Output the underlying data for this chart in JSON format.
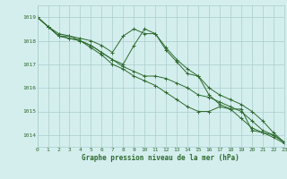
{
  "title": "Graphe pression niveau de la mer (hPa)",
  "bg_color": "#d4eeee",
  "grid_color": "#aacccc",
  "line_color": "#2d6a2d",
  "xlim": [
    0,
    23
  ],
  "ylim": [
    1013.5,
    1019.5
  ],
  "yticks": [
    1014,
    1015,
    1016,
    1017,
    1018,
    1019
  ],
  "xticks": [
    0,
    1,
    2,
    3,
    4,
    5,
    6,
    7,
    8,
    9,
    10,
    11,
    12,
    13,
    14,
    15,
    16,
    17,
    18,
    19,
    20,
    21,
    22,
    23
  ],
  "series": [
    [
      1019.0,
      1018.6,
      1018.2,
      1018.2,
      1018.1,
      1018.0,
      1017.8,
      1017.5,
      1018.2,
      1018.5,
      1018.3,
      1018.3,
      1017.7,
      1017.2,
      1016.8,
      1016.5,
      1015.7,
      1015.3,
      1015.1,
      1015.1,
      1014.2,
      1014.1,
      1014.0,
      1013.7
    ],
    [
      1019.0,
      1018.6,
      1018.3,
      1018.2,
      1018.0,
      1017.8,
      1017.5,
      1017.2,
      1017.0,
      1017.8,
      1018.5,
      1018.3,
      1017.6,
      1017.1,
      1016.6,
      1016.5,
      1016.0,
      1015.7,
      1015.5,
      1015.3,
      1015.0,
      1014.6,
      1014.1,
      1013.7
    ],
    [
      1019.0,
      1018.6,
      1018.2,
      1018.1,
      1018.0,
      1017.8,
      1017.5,
      1017.2,
      1016.9,
      1016.7,
      1016.5,
      1016.5,
      1016.4,
      1016.2,
      1016.0,
      1015.7,
      1015.6,
      1015.4,
      1015.2,
      1015.0,
      1014.6,
      1014.2,
      1014.0,
      1013.7
    ],
    [
      1019.0,
      1018.6,
      1018.2,
      1018.1,
      1018.0,
      1017.7,
      1017.4,
      1017.0,
      1016.8,
      1016.5,
      1016.3,
      1016.1,
      1015.8,
      1015.5,
      1015.2,
      1015.0,
      1015.0,
      1015.2,
      1015.1,
      1014.7,
      1014.3,
      1014.1,
      1013.9,
      1013.65
    ]
  ]
}
